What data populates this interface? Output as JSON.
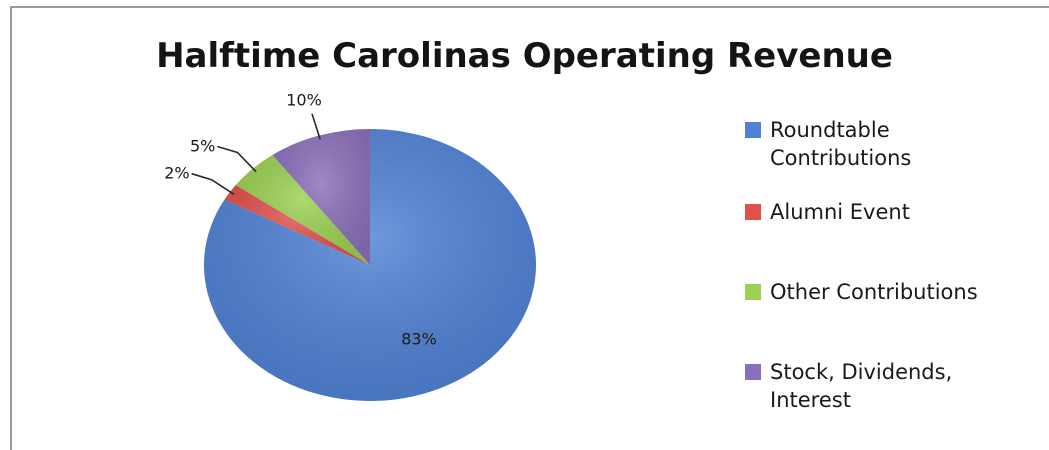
{
  "chart_data": {
    "type": "pie",
    "title": "Halftime Carolinas Operating Revenue",
    "categories": [
      "Roundtable Contributions",
      "Alumni Event",
      "Other Contributions",
      "Stock, Dividends, Interest"
    ],
    "values": [
      83,
      2,
      5,
      10
    ],
    "value_labels": [
      "83%",
      "2%",
      "5%",
      "10%"
    ],
    "colors": [
      "#4f81d4",
      "#e0504d",
      "#9bd052",
      "#8b6fba"
    ],
    "legend_position": "right"
  }
}
